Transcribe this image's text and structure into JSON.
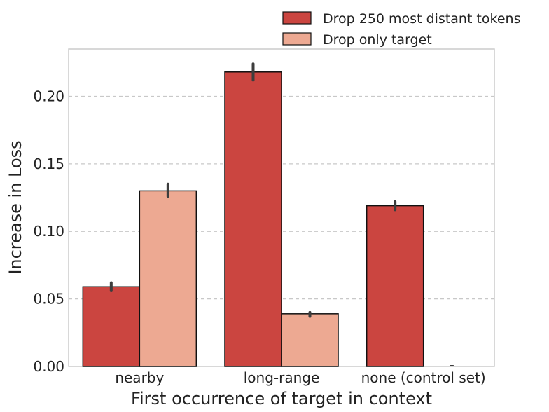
{
  "chart_data": {
    "type": "bar",
    "title": "",
    "xlabel": "First occurrence of target in context",
    "ylabel": "Increase in Loss",
    "categories": [
      "nearby",
      "long-range",
      "none (control set)"
    ],
    "ylim": [
      0,
      0.235
    ],
    "yticks": [
      "0.00",
      "0.05",
      "0.10",
      "0.15",
      "0.20"
    ],
    "grid": "y-dashed",
    "legend_position": "top-right",
    "series": [
      {
        "name": "Drop 250 most distant tokens",
        "color": "#cb4540",
        "values": [
          0.059,
          0.218,
          0.119
        ],
        "error": [
          [
            0.056,
            0.062
          ],
          [
            0.212,
            0.224
          ],
          [
            0.116,
            0.122
          ]
        ]
      },
      {
        "name": "Drop only target",
        "color": "#eda992",
        "values": [
          0.13,
          0.039,
          0.0
        ],
        "error": [
          [
            0.126,
            0.135
          ],
          [
            0.037,
            0.04
          ],
          [
            0.0,
            0.0
          ]
        ]
      }
    ]
  }
}
